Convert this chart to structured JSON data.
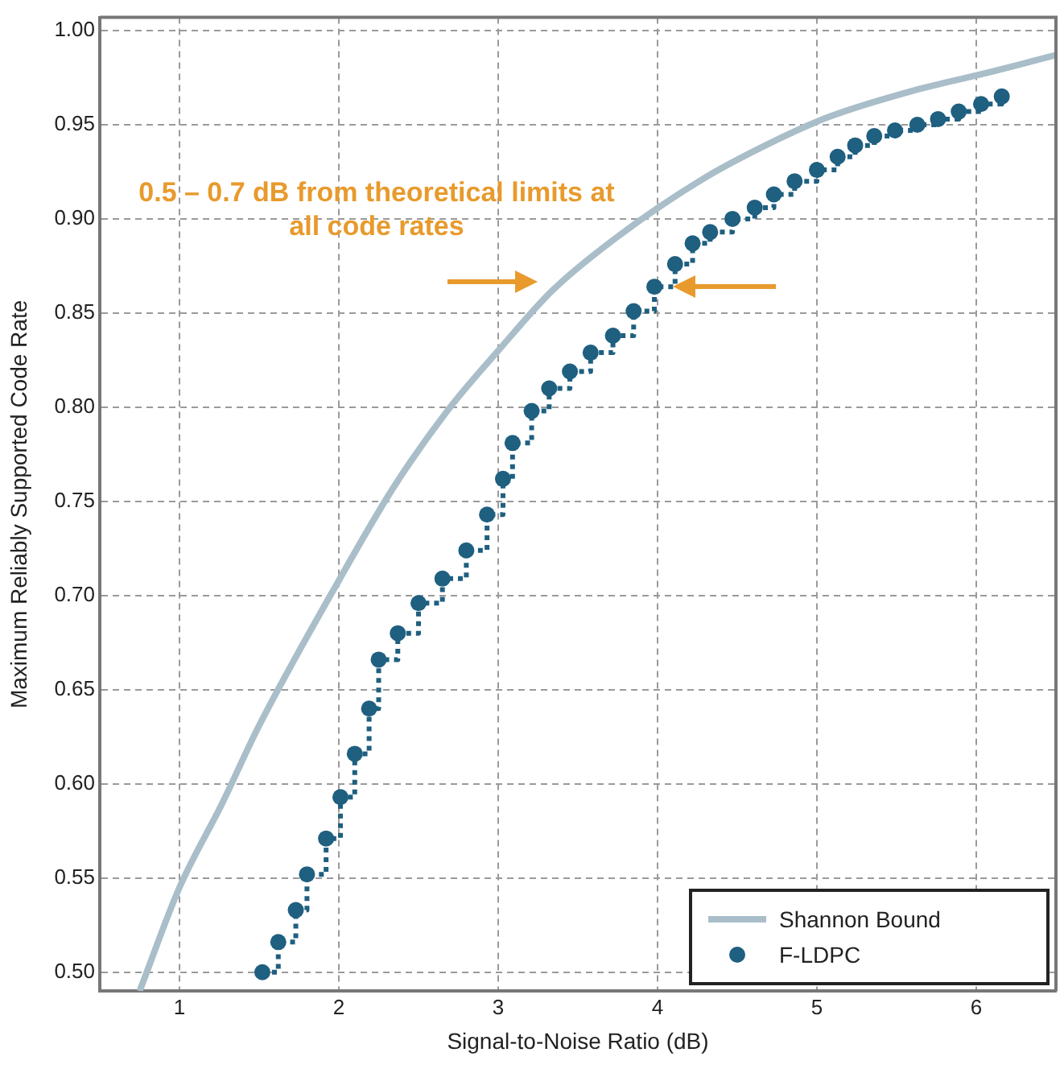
{
  "chart_data": {
    "type": "line",
    "xlabel": "Signal-to-Noise Ratio (dB)",
    "ylabel": "Maximum Reliably Supported Code Rate",
    "xlim": [
      0.5,
      6.5
    ],
    "xticks": [
      1,
      2,
      3,
      4,
      5,
      6
    ],
    "ylim": [
      0.49,
      1.007
    ],
    "yticks": [
      {
        "value": 0.5,
        "label": "0.50"
      },
      {
        "value": 0.55,
        "label": "0.55"
      },
      {
        "value": 0.6,
        "label": "0.60"
      },
      {
        "value": 0.65,
        "label": "0.65"
      },
      {
        "value": 0.7,
        "label": "0.70"
      },
      {
        "value": 0.75,
        "label": "0.75"
      },
      {
        "value": 0.8,
        "label": "0.80"
      },
      {
        "value": 0.85,
        "label": "0.85"
      },
      {
        "value": 0.9,
        "label": "0.90"
      },
      {
        "value": 0.95,
        "label": "0.95"
      },
      {
        "value": 1.0,
        "label": "1.00"
      }
    ],
    "grid": true,
    "legend": "bottom right",
    "annotations": [
      "0.5 – 0.7 dB from theoretical limits at all code rates"
    ],
    "series": [
      {
        "name": "Shannon Bound",
        "type": "line",
        "marker": "none",
        "line_style": "solid",
        "color": "#a9bec9",
        "x": [
          0.75,
          1,
          1.27,
          1.5,
          2,
          2.34,
          2.68,
          3.01,
          3.34,
          3.74,
          4.28,
          4.7,
          5.07,
          5.6,
          6.09,
          6.5
        ],
        "values": [
          0.49,
          0.545,
          0.59,
          0.631,
          0.708,
          0.757,
          0.798,
          0.831,
          0.862,
          0.89,
          0.921,
          0.94,
          0.954,
          0.968,
          0.978,
          0.987
        ]
      },
      {
        "name": "F-LDPC",
        "type": "step",
        "marker": "circle",
        "line_style": "dotted",
        "color": "#1f5f80",
        "x": [
          1.52,
          1.62,
          1.73,
          1.8,
          1.92,
          2.01,
          2.1,
          2.19,
          2.25,
          2.37,
          2.5,
          2.65,
          2.8,
          2.93,
          3.03,
          3.09,
          3.21,
          3.32,
          3.45,
          3.58,
          3.72,
          3.85,
          3.98,
          4.11,
          4.22,
          4.33,
          4.47,
          4.61,
          4.73,
          4.86,
          5.0,
          5.13,
          5.24,
          5.36,
          5.49,
          5.63,
          5.76,
          5.89,
          6.03,
          6.16
        ],
        "values": [
          0.5,
          0.516,
          0.533,
          0.552,
          0.571,
          0.593,
          0.616,
          0.64,
          0.666,
          0.68,
          0.696,
          0.709,
          0.724,
          0.743,
          0.762,
          0.781,
          0.798,
          0.81,
          0.819,
          0.829,
          0.838,
          0.851,
          0.864,
          0.876,
          0.887,
          0.893,
          0.9,
          0.906,
          0.913,
          0.92,
          0.926,
          0.933,
          0.939,
          0.944,
          0.947,
          0.95,
          0.953,
          0.957,
          0.961,
          0.965
        ]
      }
    ]
  }
}
